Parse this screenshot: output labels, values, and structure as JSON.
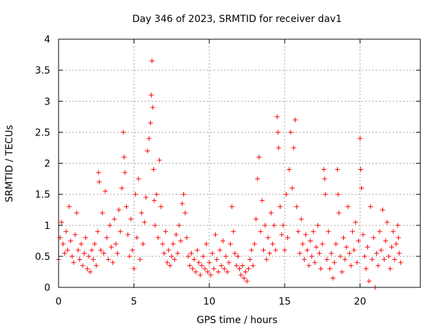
{
  "chart_data": {
    "type": "scatter",
    "title": "Day 346 of 2023, SRMTID for receiver dav1",
    "xlabel": "GPS time / hours",
    "ylabel": "SRMTID / TECUs",
    "xlim": [
      0,
      24
    ],
    "ylim": [
      0,
      4
    ],
    "xticks": [
      0,
      5,
      10,
      15,
      20
    ],
    "xtick_labels": [
      "0",
      "5",
      "10",
      "15",
      "20"
    ],
    "yticks": [
      0,
      0.5,
      1,
      1.5,
      2,
      2.5,
      3,
      3.5,
      4
    ],
    "ytick_labels": [
      "0",
      "0.5",
      "1",
      "1.5",
      "2",
      "2.5",
      "3",
      "3.5",
      "4"
    ],
    "grid": true,
    "marker": "+",
    "marker_color": "#ff0000",
    "series": [
      {
        "name": "SRMTID",
        "points": [
          [
            0.0,
            0.45
          ],
          [
            0.1,
            0.8
          ],
          [
            0.2,
            1.05
          ],
          [
            0.3,
            0.7
          ],
          [
            0.4,
            0.55
          ],
          [
            0.5,
            0.9
          ],
          [
            0.6,
            0.6
          ],
          [
            0.7,
            1.3
          ],
          [
            0.8,
            0.75
          ],
          [
            0.9,
            0.5
          ],
          [
            1.0,
            0.4
          ],
          [
            1.1,
            0.85
          ],
          [
            1.2,
            1.2
          ],
          [
            1.3,
            0.6
          ],
          [
            1.4,
            0.45
          ],
          [
            1.5,
            0.7
          ],
          [
            1.6,
            0.35
          ],
          [
            1.7,
            0.55
          ],
          [
            1.8,
            0.8
          ],
          [
            1.9,
            0.3
          ],
          [
            2.0,
            0.5
          ],
          [
            2.1,
            0.25
          ],
          [
            2.2,
            0.6
          ],
          [
            2.3,
            0.45
          ],
          [
            2.4,
            0.7
          ],
          [
            2.5,
            0.35
          ],
          [
            2.6,
            0.9
          ],
          [
            2.65,
            1.85
          ],
          [
            2.7,
            1.7
          ],
          [
            2.8,
            0.6
          ],
          [
            2.9,
            1.2
          ],
          [
            3.0,
            0.55
          ],
          [
            3.1,
            1.55
          ],
          [
            3.2,
            0.8
          ],
          [
            3.3,
            0.45
          ],
          [
            3.4,
            1.0
          ],
          [
            3.5,
            0.65
          ],
          [
            3.6,
            0.4
          ],
          [
            3.7,
            1.1
          ],
          [
            3.8,
            0.7
          ],
          [
            3.9,
            0.55
          ],
          [
            4.0,
            1.25
          ],
          [
            4.1,
            0.9
          ],
          [
            4.2,
            1.6
          ],
          [
            4.3,
            2.5
          ],
          [
            4.35,
            2.1
          ],
          [
            4.4,
            1.85
          ],
          [
            4.5,
            1.3
          ],
          [
            4.6,
            0.85
          ],
          [
            4.7,
            0.5
          ],
          [
            4.8,
            1.1
          ],
          [
            4.9,
            0.6
          ],
          [
            5.0,
            0.3
          ],
          [
            5.1,
            1.5
          ],
          [
            5.2,
            0.8
          ],
          [
            5.3,
            1.75
          ],
          [
            5.4,
            0.45
          ],
          [
            5.5,
            1.2
          ],
          [
            5.6,
            0.7
          ],
          [
            5.7,
            1.05
          ],
          [
            5.8,
            1.45
          ],
          [
            5.9,
            2.2
          ],
          [
            6.0,
            2.4
          ],
          [
            6.1,
            2.65
          ],
          [
            6.15,
            3.1
          ],
          [
            6.2,
            3.65
          ],
          [
            6.25,
            2.9
          ],
          [
            6.3,
            1.9
          ],
          [
            6.35,
            1.4
          ],
          [
            6.4,
            1.0
          ],
          [
            6.5,
            1.5
          ],
          [
            6.6,
            0.8
          ],
          [
            6.7,
            2.05
          ],
          [
            6.8,
            1.3
          ],
          [
            6.9,
            0.7
          ],
          [
            7.0,
            0.55
          ],
          [
            7.1,
            0.9
          ],
          [
            7.2,
            0.4
          ],
          [
            7.3,
            0.6
          ],
          [
            7.4,
            0.35
          ],
          [
            7.5,
            0.5
          ],
          [
            7.6,
            0.7
          ],
          [
            7.7,
            0.45
          ],
          [
            7.8,
            0.85
          ],
          [
            7.9,
            0.55
          ],
          [
            8.0,
            1.0
          ],
          [
            8.1,
            0.75
          ],
          [
            8.2,
            1.35
          ],
          [
            8.3,
            1.5
          ],
          [
            8.4,
            1.2
          ],
          [
            8.5,
            0.8
          ],
          [
            8.6,
            0.5
          ],
          [
            8.7,
            0.35
          ],
          [
            8.8,
            0.55
          ],
          [
            8.9,
            0.3
          ],
          [
            9.0,
            0.45
          ],
          [
            9.1,
            0.25
          ],
          [
            9.2,
            0.6
          ],
          [
            9.3,
            0.4
          ],
          [
            9.4,
            0.2
          ],
          [
            9.5,
            0.35
          ],
          [
            9.6,
            0.5
          ],
          [
            9.7,
            0.3
          ],
          [
            9.8,
            0.7
          ],
          [
            9.9,
            0.25
          ],
          [
            10.0,
            0.4
          ],
          [
            10.1,
            0.2
          ],
          [
            10.2,
            0.55
          ],
          [
            10.3,
            0.3
          ],
          [
            10.4,
            0.85
          ],
          [
            10.5,
            0.45
          ],
          [
            10.6,
            0.25
          ],
          [
            10.7,
            0.6
          ],
          [
            10.8,
            0.35
          ],
          [
            10.9,
            0.75
          ],
          [
            11.0,
            0.3
          ],
          [
            11.1,
            0.5
          ],
          [
            11.2,
            0.25
          ],
          [
            11.3,
            0.4
          ],
          [
            11.4,
            0.7
          ],
          [
            11.5,
            1.3
          ],
          [
            11.6,
            0.9
          ],
          [
            11.7,
            0.55
          ],
          [
            11.8,
            0.35
          ],
          [
            11.9,
            0.5
          ],
          [
            12.0,
            0.3
          ],
          [
            12.1,
            0.2
          ],
          [
            12.2,
            0.35
          ],
          [
            12.3,
            0.15
          ],
          [
            12.4,
            0.25
          ],
          [
            12.5,
            0.1
          ],
          [
            12.6,
            0.3
          ],
          [
            12.7,
            0.45
          ],
          [
            12.8,
            0.6
          ],
          [
            12.9,
            0.35
          ],
          [
            13.0,
            0.7
          ],
          [
            13.1,
            1.1
          ],
          [
            13.2,
            1.75
          ],
          [
            13.3,
            2.1
          ],
          [
            13.4,
            0.9
          ],
          [
            13.5,
            1.4
          ],
          [
            13.6,
            0.6
          ],
          [
            13.7,
            1.0
          ],
          [
            13.8,
            0.45
          ],
          [
            13.9,
            0.8
          ],
          [
            14.0,
            0.55
          ],
          [
            14.1,
            1.2
          ],
          [
            14.2,
            0.7
          ],
          [
            14.3,
            1.0
          ],
          [
            14.4,
            0.6
          ],
          [
            14.5,
            2.75
          ],
          [
            14.55,
            2.5
          ],
          [
            14.6,
            2.25
          ],
          [
            14.7,
            1.3
          ],
          [
            14.8,
            0.85
          ],
          [
            14.9,
            1.0
          ],
          [
            15.0,
            0.6
          ],
          [
            15.1,
            1.5
          ],
          [
            15.2,
            0.8
          ],
          [
            15.3,
            1.9
          ],
          [
            15.4,
            2.5
          ],
          [
            15.5,
            1.6
          ],
          [
            15.6,
            2.25
          ],
          [
            15.7,
            2.7
          ],
          [
            15.8,
            1.3
          ],
          [
            15.9,
            0.9
          ],
          [
            16.0,
            0.55
          ],
          [
            16.1,
            1.1
          ],
          [
            16.2,
            0.7
          ],
          [
            16.3,
            0.45
          ],
          [
            16.4,
            0.85
          ],
          [
            16.5,
            0.6
          ],
          [
            16.6,
            0.35
          ],
          [
            16.7,
            0.75
          ],
          [
            16.8,
            0.5
          ],
          [
            16.9,
            0.9
          ],
          [
            17.0,
            0.4
          ],
          [
            17.1,
            0.65
          ],
          [
            17.2,
            1.0
          ],
          [
            17.3,
            0.55
          ],
          [
            17.4,
            0.3
          ],
          [
            17.5,
            0.7
          ],
          [
            17.6,
            1.9
          ],
          [
            17.65,
            1.75
          ],
          [
            17.7,
            1.5
          ],
          [
            17.8,
            0.45
          ],
          [
            17.9,
            0.9
          ],
          [
            18.0,
            0.3
          ],
          [
            18.1,
            0.55
          ],
          [
            18.2,
            0.15
          ],
          [
            18.3,
            0.4
          ],
          [
            18.4,
            0.7
          ],
          [
            18.5,
            1.9
          ],
          [
            18.55,
            1.5
          ],
          [
            18.6,
            1.2
          ],
          [
            18.7,
            0.5
          ],
          [
            18.8,
            0.25
          ],
          [
            18.9,
            0.8
          ],
          [
            19.0,
            0.45
          ],
          [
            19.1,
            0.65
          ],
          [
            19.2,
            1.3
          ],
          [
            19.3,
            0.55
          ],
          [
            19.4,
            0.35
          ],
          [
            19.5,
            0.9
          ],
          [
            19.6,
            0.6
          ],
          [
            19.7,
            1.05
          ],
          [
            19.8,
            0.4
          ],
          [
            19.9,
            0.75
          ],
          [
            20.0,
            2.4
          ],
          [
            20.05,
            1.9
          ],
          [
            20.1,
            1.6
          ],
          [
            20.2,
            0.85
          ],
          [
            20.3,
            0.5
          ],
          [
            20.4,
            0.3
          ],
          [
            20.5,
            0.65
          ],
          [
            20.6,
            0.1
          ],
          [
            20.7,
            1.3
          ],
          [
            20.8,
            0.45
          ],
          [
            20.9,
            0.8
          ],
          [
            21.0,
            0.0
          ],
          [
            21.1,
            0.55
          ],
          [
            21.2,
            0.35
          ],
          [
            21.3,
            0.9
          ],
          [
            21.4,
            0.6
          ],
          [
            21.5,
            1.25
          ],
          [
            21.6,
            0.45
          ],
          [
            21.7,
            0.75
          ],
          [
            21.8,
            1.05
          ],
          [
            21.9,
            0.5
          ],
          [
            22.0,
            0.3
          ],
          [
            22.1,
            0.65
          ],
          [
            22.2,
            0.9
          ],
          [
            22.3,
            0.45
          ],
          [
            22.4,
            0.7
          ],
          [
            22.5,
            1.0
          ],
          [
            22.55,
            0.8
          ],
          [
            22.6,
            0.55
          ],
          [
            22.7,
            0.4
          ]
        ]
      }
    ]
  }
}
